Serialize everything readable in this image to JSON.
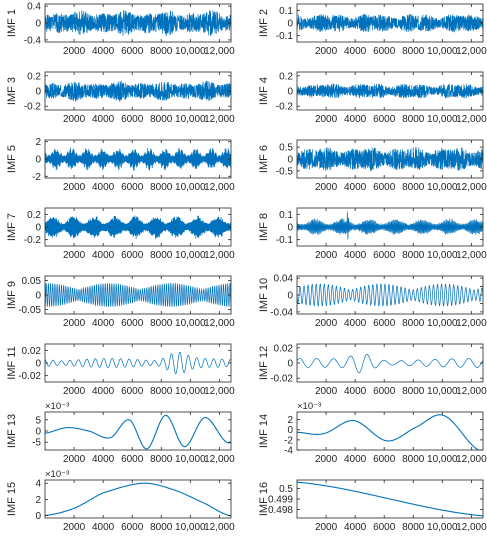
{
  "chart_data": [
    {
      "type": "line",
      "ylabel": "IMF 1",
      "ylim": [
        -0.45,
        0.45
      ],
      "yticks": [
        -0.4,
        0,
        0.4
      ],
      "yticklabels": [
        "-0.4",
        "0",
        "0.4"
      ],
      "exponent": "",
      "xlim": [
        0,
        12800
      ],
      "xticks": [
        2000,
        4000,
        6000,
        8000,
        10000,
        12000
      ],
      "xticklabels": [
        "2000",
        "4000",
        "6000",
        "8000",
        "10,000",
        "12,000"
      ],
      "signal": {
        "kind": "noise",
        "amplitude": 0.32,
        "cycles": 1400,
        "seed": 1
      },
      "color": "#0072BD"
    },
    {
      "type": "line",
      "ylabel": "IMF 2",
      "ylim": [
        -0.15,
        0.15
      ],
      "yticks": [
        -0.1,
        0,
        0.1
      ],
      "yticklabels": [
        "-0.1",
        "0",
        "0.1"
      ],
      "exponent": "",
      "xlim": [
        0,
        12800
      ],
      "xticks": [
        2000,
        4000,
        6000,
        8000,
        10000,
        12000
      ],
      "xticklabels": [
        "2000",
        "4000",
        "6000",
        "8000",
        "10,000",
        "12,000"
      ],
      "signal": {
        "kind": "noise",
        "amplitude": 0.08,
        "cycles": 1100,
        "seed": 2
      },
      "color": "#0072BD"
    },
    {
      "type": "line",
      "ylabel": "IMF 3",
      "ylim": [
        -0.25,
        0.25
      ],
      "yticks": [
        -0.2,
        0,
        0.2
      ],
      "yticklabels": [
        "-0.2",
        "0",
        "0.2"
      ],
      "exponent": "",
      "xlim": [
        0,
        12800
      ],
      "xticks": [
        2000,
        4000,
        6000,
        8000,
        10000,
        12000
      ],
      "xticklabels": [
        "2000",
        "4000",
        "6000",
        "8000",
        "10,000",
        "12,000"
      ],
      "signal": {
        "kind": "noise",
        "amplitude": 0.14,
        "cycles": 800,
        "seed": 3
      },
      "color": "#0072BD"
    },
    {
      "type": "line",
      "ylabel": "IMF 4",
      "ylim": [
        -0.25,
        0.25
      ],
      "yticks": [
        -0.2,
        0,
        0.2
      ],
      "yticklabels": [
        "-0.2",
        "0",
        "0.2"
      ],
      "exponent": "",
      "xlim": [
        0,
        12800
      ],
      "xticks": [
        2000,
        4000,
        6000,
        8000,
        10000,
        12000
      ],
      "xticklabels": [
        "2000",
        "4000",
        "6000",
        "8000",
        "10,000",
        "12,000"
      ],
      "signal": {
        "kind": "noise",
        "amplitude": 0.11,
        "cycles": 600,
        "seed": 4
      },
      "color": "#0072BD"
    },
    {
      "type": "line",
      "ylabel": "IMF 5",
      "ylim": [
        -2.2,
        2.2
      ],
      "yticks": [
        -2,
        0,
        2
      ],
      "yticklabels": [
        "-2",
        "0",
        "2"
      ],
      "exponent": "",
      "xlim": [
        0,
        12800
      ],
      "xticks": [
        2000,
        4000,
        6000,
        8000,
        10000,
        12000
      ],
      "xticklabels": [
        "2000",
        "4000",
        "6000",
        "8000",
        "10,000",
        "12,000"
      ],
      "signal": {
        "kind": "burst",
        "amplitude": 1.4,
        "cycles": 420,
        "bursts": 12,
        "seed": 5
      },
      "color": "#0072BD"
    },
    {
      "type": "line",
      "ylabel": "IMF 6",
      "ylim": [
        -0.8,
        0.8
      ],
      "yticks": [
        -0.5,
        0,
        0.5
      ],
      "yticklabels": [
        "-0.5",
        "0",
        "0.5"
      ],
      "exponent": "",
      "xlim": [
        0,
        12800
      ],
      "xticks": [
        2000,
        4000,
        6000,
        8000,
        10000,
        12000
      ],
      "xticklabels": [
        "2000",
        "4000",
        "6000",
        "8000",
        "10,000",
        "12,000"
      ],
      "signal": {
        "kind": "noise",
        "amplitude": 0.55,
        "cycles": 330,
        "seed": 6
      },
      "color": "#0072BD"
    },
    {
      "type": "line",
      "ylabel": "IMF 7",
      "ylim": [
        -0.3,
        0.3
      ],
      "yticks": [
        -0.2,
        0,
        0.2
      ],
      "yticklabels": [
        "-0.2",
        "0",
        "0.2"
      ],
      "exponent": "",
      "xlim": [
        0,
        12800
      ],
      "xticks": [
        2000,
        4000,
        6000,
        8000,
        10000,
        12000
      ],
      "xticklabels": [
        "2000",
        "4000",
        "6000",
        "8000",
        "10,000",
        "12,000"
      ],
      "signal": {
        "kind": "burst",
        "amplitude": 0.2,
        "cycles": 240,
        "bursts": 9,
        "seed": 7
      },
      "color": "#0072BD"
    },
    {
      "type": "line",
      "ylabel": "IMF 8",
      "ylim": [
        -0.15,
        0.15
      ],
      "yticks": [
        -0.1,
        0,
        0.1
      ],
      "yticklabels": [
        "-0.1",
        "0",
        "0.1"
      ],
      "exponent": "",
      "xlim": [
        0,
        12800
      ],
      "xticks": [
        2000,
        4000,
        6000,
        8000,
        10000,
        12000
      ],
      "xticklabels": [
        "2000",
        "4000",
        "6000",
        "8000",
        "10,000",
        "12,000"
      ],
      "signal": {
        "kind": "burst",
        "amplitude": 0.07,
        "cycles": 160,
        "bursts": 7,
        "spike": 3500,
        "seed": 8
      },
      "color": "#0072BD"
    },
    {
      "type": "line",
      "ylabel": "IMF 9",
      "ylim": [
        -0.065,
        0.065
      ],
      "yticks": [
        -0.05,
        0,
        0.05
      ],
      "yticklabels": [
        "-0.05",
        "0",
        "0.05"
      ],
      "exponent": "",
      "xlim": [
        0,
        12800
      ],
      "xticks": [
        2000,
        4000,
        6000,
        8000,
        10000,
        12000
      ],
      "xticklabels": [
        "2000",
        "4000",
        "6000",
        "8000",
        "10,000",
        "12,000"
      ],
      "signal": {
        "kind": "modulated",
        "amplitude": 0.04,
        "cycles": 85,
        "mod": 3,
        "seed": 9
      },
      "color": "#0072BD"
    },
    {
      "type": "line",
      "ylabel": "IMF 10",
      "ylim": [
        -0.045,
        0.045
      ],
      "yticks": [
        -0.04,
        -0.02,
        0,
        0.02,
        0.04
      ],
      "yticklabels": [
        "-0.04",
        "",
        "0",
        "",
        "0.04"
      ],
      "exponent": "",
      "xlim": [
        0,
        12800
      ],
      "xticks": [
        2000,
        4000,
        6000,
        8000,
        10000,
        12000
      ],
      "xticklabels": [
        "2000",
        "4000",
        "6000",
        "8000",
        "10,000",
        "12,000"
      ],
      "signal": {
        "kind": "modulated",
        "amplitude": 0.026,
        "cycles": 46,
        "mod": 3,
        "seed": 10
      },
      "color": "#0072BD"
    },
    {
      "type": "line",
      "ylabel": "IMF 11",
      "ylim": [
        -0.03,
        0.03
      ],
      "yticks": [
        -0.02,
        0,
        0.02
      ],
      "yticklabels": [
        "-0.02",
        "0",
        "0.02"
      ],
      "exponent": "",
      "xlim": [
        0,
        12800
      ],
      "xticks": [
        2000,
        4000,
        6000,
        8000,
        10000,
        12000
      ],
      "xticklabels": [
        "2000",
        "4000",
        "6000",
        "8000",
        "10,000",
        "12,000"
      ],
      "signal": {
        "kind": "modulated",
        "amplitude": 0.012,
        "cycles": 22,
        "mod": 2,
        "peak": 9000,
        "seed": 11
      },
      "color": "#0072BD"
    },
    {
      "type": "line",
      "ylabel": "IMF 12",
      "ylim": [
        -0.025,
        0.025
      ],
      "yticks": [
        -0.02,
        0,
        0.02
      ],
      "yticklabels": [
        "-0.02",
        "0",
        "0.02"
      ],
      "exponent": "",
      "xlim": [
        0,
        12800
      ],
      "xticks": [
        2000,
        4000,
        6000,
        8000,
        10000,
        12000
      ],
      "xticklabels": [
        "2000",
        "4000",
        "6000",
        "8000",
        "10,000",
        "12,000"
      ],
      "signal": {
        "kind": "modulated",
        "amplitude": 0.01,
        "cycles": 11,
        "mod": 1,
        "peak": 4500,
        "seed": 12
      },
      "color": "#0072BD"
    },
    {
      "type": "line",
      "ylabel": "IMF 13",
      "ylim": [
        -8.5,
        8.5
      ],
      "yticks": [
        -5,
        0,
        5
      ],
      "yticklabels": [
        "-5",
        "0",
        "5"
      ],
      "exponent": "×10⁻³",
      "xlim": [
        0,
        12800
      ],
      "xticks": [
        2000,
        4000,
        6000,
        8000,
        10000,
        12000
      ],
      "xticklabels": [
        "2000",
        "4000",
        "6000",
        "8000",
        "10,000",
        "12,000"
      ],
      "signal": {
        "kind": "points",
        "x": [
          0,
          1500,
          3000,
          4500,
          5800,
          7000,
          8300,
          9600,
          11000,
          12500
        ],
        "y": [
          -1,
          1.5,
          0,
          -3,
          5,
          -8,
          7,
          -7,
          6,
          -5
        ]
      },
      "color": "#0072BD"
    },
    {
      "type": "line",
      "ylabel": "IMF 14",
      "ylim": [
        -4,
        3.5
      ],
      "yticks": [
        -4,
        -2,
        0,
        2
      ],
      "yticklabels": [
        "-4",
        "-2",
        "0",
        "2"
      ],
      "exponent": "×10⁻³",
      "xlim": [
        0,
        12800
      ],
      "xticks": [
        2000,
        4000,
        6000,
        8000,
        10000,
        12000
      ],
      "xticklabels": [
        "2000",
        "4000",
        "6000",
        "8000",
        "10,000",
        "12,000"
      ],
      "signal": {
        "kind": "points",
        "x": [
          0,
          1800,
          3900,
          6200,
          8200,
          10100,
          12500
        ],
        "y": [
          -0.5,
          -0.8,
          1.8,
          -2.2,
          0.5,
          2.8,
          -4
        ]
      },
      "color": "#0072BD"
    },
    {
      "type": "line",
      "ylabel": "IMF 15",
      "ylim": [
        -0.3,
        4.4
      ],
      "yticks": [
        0,
        2,
        4
      ],
      "yticklabels": [
        "0",
        "2",
        "4"
      ],
      "exponent": "×10⁻³",
      "xlim": [
        0,
        12800
      ],
      "xticks": [
        2000,
        4000,
        6000,
        8000,
        10000,
        12000
      ],
      "xticklabels": [
        "2000",
        "4000",
        "6000",
        "8000",
        "10,000",
        "12,000"
      ],
      "signal": {
        "kind": "points",
        "x": [
          0,
          2000,
          4000,
          6800,
          9000,
          11000,
          12700
        ],
        "y": [
          0,
          0.9,
          2.8,
          4,
          3.1,
          1.5,
          0
        ]
      },
      "color": "#0072BD"
    },
    {
      "type": "line",
      "ylabel": "IMF 16",
      "ylim": [
        0.4972,
        0.5008
      ],
      "yticks": [
        0.498,
        0.499,
        0.5
      ],
      "yticklabels": [
        "0.498",
        "0.499",
        "0.5"
      ],
      "exponent": "",
      "xlim": [
        0,
        12800
      ],
      "xticks": [
        2000,
        4000,
        6000,
        8000,
        10000,
        12000
      ],
      "xticklabels": [
        "2000",
        "4000",
        "6000",
        "8000",
        "10,000",
        "12,000"
      ],
      "signal": {
        "kind": "points",
        "x": [
          0,
          12800
        ],
        "y": [
          0.5006,
          0.4974
        ]
      },
      "color": "#0072BD"
    }
  ]
}
